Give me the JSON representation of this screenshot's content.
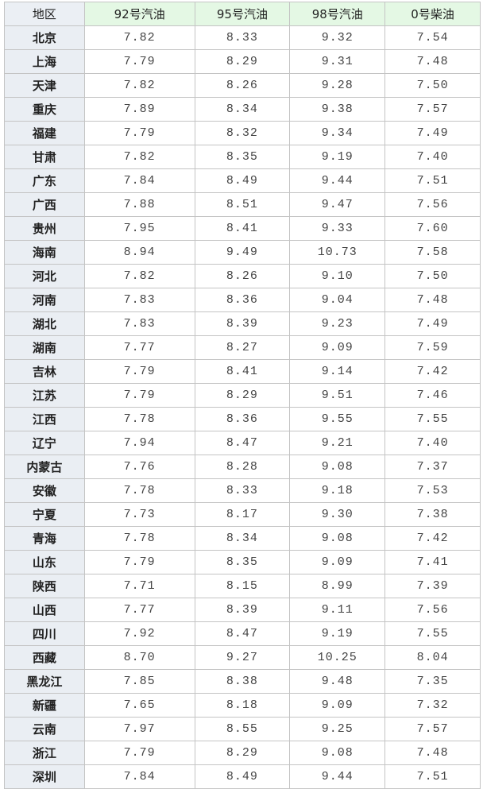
{
  "table": {
    "headers": [
      "地区",
      "92号汽油",
      "95号汽油",
      "98号汽油",
      "0号柴油"
    ],
    "rows": [
      [
        "北京",
        "7.82",
        "8.33",
        "9.32",
        "7.54"
      ],
      [
        "上海",
        "7.79",
        "8.29",
        "9.31",
        "7.48"
      ],
      [
        "天津",
        "7.82",
        "8.26",
        "9.28",
        "7.50"
      ],
      [
        "重庆",
        "7.89",
        "8.34",
        "9.38",
        "7.57"
      ],
      [
        "福建",
        "7.79",
        "8.32",
        "9.34",
        "7.49"
      ],
      [
        "甘肃",
        "7.82",
        "8.35",
        "9.19",
        "7.40"
      ],
      [
        "广东",
        "7.84",
        "8.49",
        "9.44",
        "7.51"
      ],
      [
        "广西",
        "7.88",
        "8.51",
        "9.47",
        "7.56"
      ],
      [
        "贵州",
        "7.95",
        "8.41",
        "9.33",
        "7.60"
      ],
      [
        "海南",
        "8.94",
        "9.49",
        "10.73",
        "7.58"
      ],
      [
        "河北",
        "7.82",
        "8.26",
        "9.10",
        "7.50"
      ],
      [
        "河南",
        "7.83",
        "8.36",
        "9.04",
        "7.48"
      ],
      [
        "湖北",
        "7.83",
        "8.39",
        "9.23",
        "7.49"
      ],
      [
        "湖南",
        "7.77",
        "8.27",
        "9.09",
        "7.59"
      ],
      [
        "吉林",
        "7.79",
        "8.41",
        "9.14",
        "7.42"
      ],
      [
        "江苏",
        "7.79",
        "8.29",
        "9.51",
        "7.46"
      ],
      [
        "江西",
        "7.78",
        "8.36",
        "9.55",
        "7.55"
      ],
      [
        "辽宁",
        "7.94",
        "8.47",
        "9.21",
        "7.40"
      ],
      [
        "内蒙古",
        "7.76",
        "8.28",
        "9.08",
        "7.37"
      ],
      [
        "安徽",
        "7.78",
        "8.33",
        "9.18",
        "7.53"
      ],
      [
        "宁夏",
        "7.73",
        "8.17",
        "9.30",
        "7.38"
      ],
      [
        "青海",
        "7.78",
        "8.34",
        "9.08",
        "7.42"
      ],
      [
        "山东",
        "7.79",
        "8.35",
        "9.09",
        "7.41"
      ],
      [
        "陕西",
        "7.71",
        "8.15",
        "8.99",
        "7.39"
      ],
      [
        "山西",
        "7.77",
        "8.39",
        "9.11",
        "7.56"
      ],
      [
        "四川",
        "7.92",
        "8.47",
        "9.19",
        "7.55"
      ],
      [
        "西藏",
        "8.70",
        "9.27",
        "10.25",
        "8.04"
      ],
      [
        "黑龙江",
        "7.85",
        "8.38",
        "9.48",
        "7.35"
      ],
      [
        "新疆",
        "7.65",
        "8.18",
        "9.09",
        "7.32"
      ],
      [
        "云南",
        "7.97",
        "8.55",
        "9.25",
        "7.57"
      ],
      [
        "浙江",
        "7.79",
        "8.29",
        "9.08",
        "7.48"
      ],
      [
        "深圳",
        "7.84",
        "8.49",
        "9.44",
        "7.51"
      ]
    ]
  },
  "colors": {
    "header_bg": "#e4f8e4",
    "region_bg": "#eaeef3",
    "border": "#c4c4c4"
  }
}
